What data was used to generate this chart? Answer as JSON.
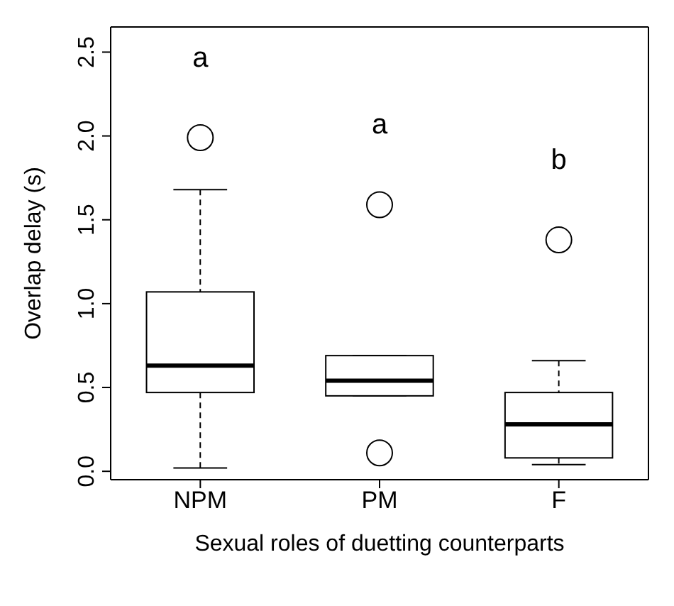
{
  "chart_data": {
    "type": "box",
    "xlabel": "Sexual roles of duetting counterparts",
    "ylabel": "Overlap delay (s)",
    "categories": [
      "NPM",
      "PM",
      "F"
    ],
    "boxes": [
      {
        "low": 0.02,
        "q1": 0.47,
        "median": 0.63,
        "q3": 1.07,
        "high": 1.68,
        "outliers": [
          1.99
        ]
      },
      {
        "low": 0.45,
        "q1": 0.45,
        "median": 0.54,
        "q3": 0.69,
        "high": 0.69,
        "outliers": [
          1.59,
          0.11
        ]
      },
      {
        "low": 0.04,
        "q1": 0.08,
        "median": 0.28,
        "q3": 0.47,
        "high": 0.66,
        "outliers": [
          1.38
        ]
      }
    ],
    "ylim": [
      -0.05,
      2.65
    ],
    "yticks": [
      {
        "value": 0.0,
        "label": "0.0"
      },
      {
        "value": 0.5,
        "label": "0.5"
      },
      {
        "value": 1.0,
        "label": "1.0"
      },
      {
        "value": 1.5,
        "label": "1.5"
      },
      {
        "value": 2.0,
        "label": "2.0"
      },
      {
        "value": 2.5,
        "label": "2.5"
      }
    ],
    "annotations": [
      "a",
      "a",
      "b"
    ],
    "grid": false,
    "legend": false
  }
}
